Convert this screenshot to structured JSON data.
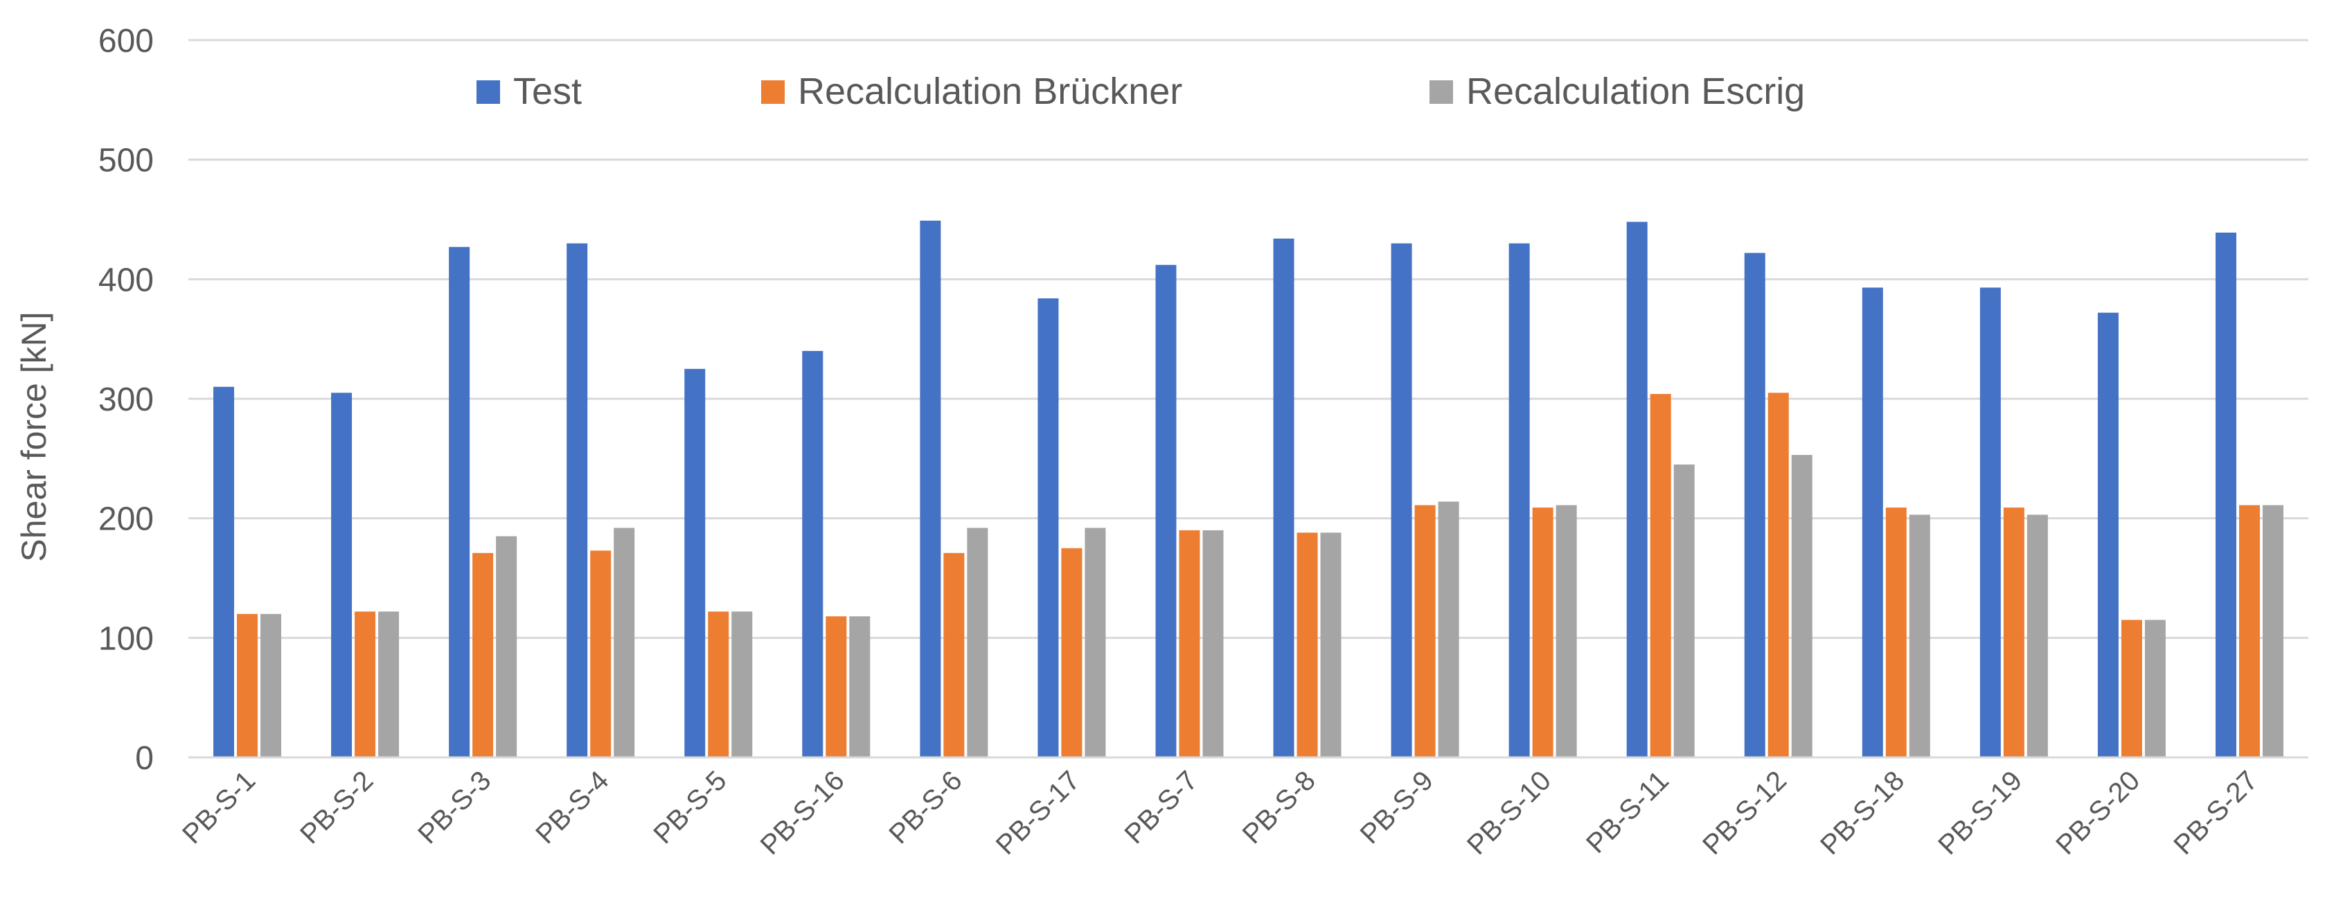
{
  "chart_data": {
    "type": "bar",
    "title": "",
    "xlabel": "",
    "ylabel": "Shear force [kN]",
    "ylim": [
      0,
      600
    ],
    "yticks": [
      "0",
      "100",
      "200",
      "300",
      "400",
      "500",
      "600"
    ],
    "grid": true,
    "legend_position": "top",
    "categories": [
      "PB-S-1",
      "PB-S-2",
      "PB-S-3",
      "PB-S-4",
      "PB-S-5",
      "PB-S-16",
      "PB-S-6",
      "PB-S-17",
      "PB-S-7",
      "PB-S-8",
      "PB-S-9",
      "PB-S-10",
      "PB-S-11",
      "PB-S-12",
      "PB-S-18",
      "PB-S-19",
      "PB-S-20",
      "PB-S-27"
    ],
    "series": [
      {
        "name": "Test",
        "color": "#4472C4",
        "values": [
          310,
          305,
          427,
          430,
          325,
          340,
          449,
          384,
          412,
          434,
          430,
          430,
          448,
          422,
          393,
          393,
          372,
          439
        ]
      },
      {
        "name": "Recalculation Brückner",
        "color": "#ED7D31",
        "values": [
          120,
          122,
          171,
          173,
          122,
          118,
          171,
          175,
          190,
          188,
          211,
          209,
          304,
          305,
          209,
          209,
          115,
          211
        ]
      },
      {
        "name": "Recalculation Escrig",
        "color": "#A5A5A5",
        "values": [
          120,
          122,
          185,
          192,
          122,
          118,
          192,
          192,
          190,
          188,
          214,
          211,
          245,
          253,
          203,
          203,
          115,
          211
        ]
      }
    ]
  }
}
